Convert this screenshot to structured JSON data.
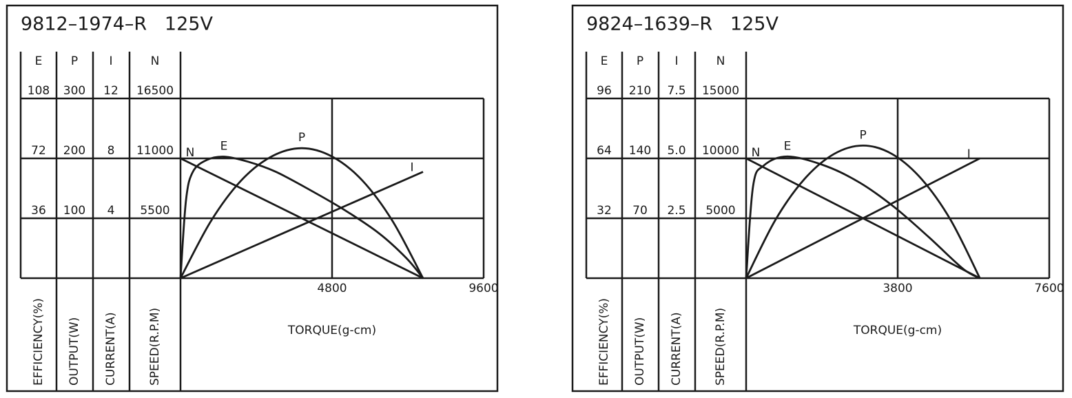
{
  "chart_data": [
    {
      "type": "line",
      "title": "9812–1974–R   125V",
      "xlabel": "TORQUE(g-cm)",
      "xlim": [
        0,
        9600
      ],
      "xticks": [
        4800,
        9600
      ],
      "axes": [
        {
          "name": "E",
          "label": "EFFICIENCY(%)",
          "ylim": [
            0,
            108
          ],
          "yticks": [
            36,
            72,
            108
          ]
        },
        {
          "name": "P",
          "label": "OUTPUT(W)",
          "ylim": [
            0,
            300
          ],
          "yticks": [
            100,
            200,
            300
          ]
        },
        {
          "name": "I",
          "label": "CURRENT(A)",
          "ylim": [
            0,
            12
          ],
          "yticks": [
            4,
            8,
            12
          ]
        },
        {
          "name": "N",
          "label": "SPEED(R.P.M)",
          "ylim": [
            0,
            16500
          ],
          "yticks": [
            5500,
            11000,
            16500
          ]
        }
      ],
      "series": [
        {
          "name": "N",
          "axis": "N",
          "color": "#1a1a1a",
          "x": [
            0,
            7680
          ],
          "values": [
            11000,
            0
          ]
        },
        {
          "name": "E",
          "axis": "E",
          "color": "#1a1a1a",
          "x": [
            0,
            175,
            393,
            829,
            1375,
            2138,
            3011,
            4102,
            5193,
            6284,
            7156,
            7680
          ],
          "values": [
            0,
            47,
            64,
            71,
            73,
            70,
            64,
            53,
            41,
            27,
            12,
            0
          ]
        },
        {
          "name": "P",
          "axis": "P",
          "color": "#1a1a1a",
          "x": [
            0,
            960,
            1920,
            2880,
            3840,
            4800,
            5760,
            6720,
            7680
          ],
          "values": [
            0,
            95,
            163,
            203,
            217,
            203,
            163,
            95,
            0
          ]
        },
        {
          "name": "I",
          "axis": "I",
          "color": "#1a1a1a",
          "x": [
            0,
            7680
          ],
          "values": [
            0,
            7.1
          ]
        }
      ]
    },
    {
      "type": "line",
      "title": "9824–1639–R   125V",
      "xlabel": "TORQUE(g-cm)",
      "xlim": [
        0,
        7600
      ],
      "xticks": [
        3800,
        7600
      ],
      "axes": [
        {
          "name": "E",
          "label": "EFFICIENCY(%)",
          "ylim": [
            0,
            96
          ],
          "yticks": [
            32,
            64,
            96
          ]
        },
        {
          "name": "P",
          "label": "OUTPUT(W)",
          "ylim": [
            0,
            210
          ],
          "yticks": [
            70,
            140,
            210
          ]
        },
        {
          "name": "I",
          "label": "CURRENT(A)",
          "ylim": [
            0,
            7.5
          ],
          "yticks": [
            2.5,
            {
              "value": 5,
              "label": "5.0"
            },
            7.5
          ]
        },
        {
          "name": "N",
          "label": "SPEED(R.P.M)",
          "ylim": [
            0,
            15000
          ],
          "yticks": [
            5000,
            10000,
            15000
          ]
        }
      ],
      "series": [
        {
          "name": "N",
          "axis": "N",
          "color": "#1a1a1a",
          "x": [
            0,
            5860
          ],
          "values": [
            10000,
            0
          ]
        },
        {
          "name": "E",
          "axis": "E",
          "color": "#1a1a1a",
          "x": [
            0,
            173,
            432,
            1036,
            1986,
            2850,
            3713,
            4577,
            5440,
            5860
          ],
          "values": [
            0,
            49,
            60,
            65,
            60,
            51,
            38,
            22,
            5,
            0
          ]
        },
        {
          "name": "P",
          "axis": "P",
          "color": "#1a1a1a",
          "x": [
            0,
            733,
            1465,
            2198,
            2930,
            3663,
            4395,
            5128,
            5860
          ],
          "values": [
            0,
            68,
            116,
            145,
            155,
            145,
            116,
            68,
            0
          ]
        },
        {
          "name": "I",
          "axis": "I",
          "color": "#1a1a1a",
          "x": [
            0,
            5860
          ],
          "values": [
            0,
            5
          ]
        }
      ]
    }
  ]
}
